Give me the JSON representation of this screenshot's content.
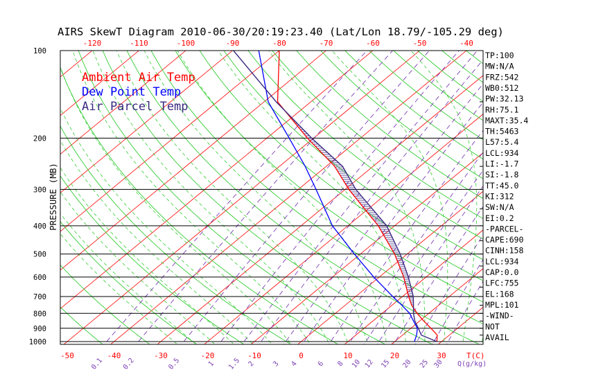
{
  "chart_data": {
    "type": "line",
    "title": "AIRS SkewT Diagram 2010-06-30/20:19:23.40 (Lat/Lon 18.79/-105.29 deg)",
    "ylabel": "PRESSURE (MB)",
    "xlabel": "T(C)",
    "mixing_ratio_label": "Q(g/kg)",
    "y_scale": "log",
    "legend": "top-left",
    "pressure_ticks": [
      100,
      200,
      300,
      400,
      500,
      600,
      700,
      800,
      900,
      1000
    ],
    "temperature_ticks_top": [
      -120,
      -110,
      -100,
      -90,
      -80,
      -70,
      -60,
      -50,
      -40
    ],
    "temperature_ticks_bottom": [
      -50,
      -40,
      -30,
      -20,
      -10,
      0,
      10,
      20,
      30
    ],
    "mixing_ratio_ticks": [
      0.1,
      0.2,
      0.5,
      1,
      1.5,
      2,
      3,
      4,
      6,
      8,
      10,
      12,
      15,
      20,
      25,
      30
    ],
    "y": [
      1000,
      950,
      900,
      850,
      800,
      750,
      700,
      600,
      500,
      400,
      300,
      250,
      200,
      150,
      100
    ],
    "series": [
      {
        "name": "Ambient Air Temp",
        "color": "#ff0000",
        "values": [
          29.0,
          27.4,
          24.3,
          20.9,
          17.5,
          14.2,
          11.3,
          5.2,
          -2.7,
          -13.5,
          -29.2,
          -38.2,
          -51.3,
          -67.1,
          -80.0
        ]
      },
      {
        "name": "Dew Point Temp",
        "color": "#0000ff",
        "values": [
          24.2,
          23.0,
          21.4,
          18.7,
          15.9,
          12.1,
          7.9,
          -1.2,
          -11.3,
          -23.3,
          -36.2,
          -44.5,
          -55.2,
          -69.1,
          -84.4
        ]
      },
      {
        "name": "Air Parcel Temp",
        "color": "#3a2a80",
        "values": [
          29.0,
          24.0,
          21.6,
          19.0,
          16.7,
          14.6,
          12.3,
          6.2,
          -1.5,
          -11.7,
          -27.7,
          -36.5,
          -50.4,
          -67.4,
          -89.8
        ]
      }
    ]
  },
  "side_panel": {
    "lines": [
      "TP:100",
      "MW:N/A",
      "FRZ:542",
      "WB0:512",
      "PW:32.13",
      "RH:75.1",
      "MAXT:35.4",
      "TH:5463",
      "L57:5.4",
      "LCL:934",
      "LI:-1.7",
      "SI:-1.8",
      "TT:45.0",
      "KI:312",
      "SW:N/A",
      "EI:0.2",
      "-PARCEL-",
      "CAPE:690",
      "CINH:158",
      "LCL:934",
      "CAP:0.0",
      "LFC:755",
      "EL:168",
      "MPL:101",
      "-WIND-",
      "NOT",
      "AVAIL"
    ]
  },
  "colors": {
    "isotherm": "#ff0000",
    "dry_adiabat": "#33cc33",
    "moist_adiabat": "#33cc33",
    "mixing_ratio": "#7b3fb5",
    "isobar": "#000000",
    "hatch": "#3a2a80",
    "temperature_labels": "#ff0000",
    "mixing_ratio_labels": "#7b3fb5"
  }
}
